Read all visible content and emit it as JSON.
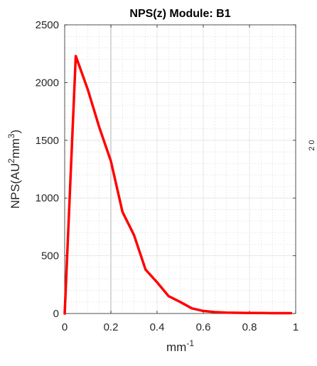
{
  "chart_data": {
    "type": "line",
    "title": "NPS(z) Module: B1",
    "xlabel": "mm",
    "xlabel_sup": "-1",
    "ylabel_prefix": "NPS(AU",
    "ylabel_sup1": "2",
    "ylabel_mid": "mm",
    "ylabel_sup2": "3",
    "ylabel_suffix": ")",
    "xlim": [
      0,
      1
    ],
    "ylim": [
      0,
      2500
    ],
    "xticks": [
      0,
      0.2,
      0.4,
      0.6,
      0.8,
      1
    ],
    "xtick_labels": [
      "0",
      "0.2",
      "0.4",
      "0.6",
      "0.8",
      "1"
    ],
    "yticks": [
      0,
      500,
      1000,
      1500,
      2000,
      2500
    ],
    "ytick_labels": [
      "0",
      "500",
      "1000",
      "1500",
      "2000",
      "2500"
    ],
    "grid": true,
    "minor_grid": true,
    "line_color": "#ff0000",
    "highlight_gridline_x": 0.2,
    "series": [
      {
        "x": [
          0,
          0.048,
          0.1,
          0.15,
          0.2,
          0.25,
          0.3,
          0.35,
          0.4,
          0.45,
          0.5,
          0.55,
          0.6,
          0.65,
          0.7,
          0.75,
          0.8,
          0.85,
          0.9,
          0.95,
          0.98
        ],
        "y": [
          0,
          2230,
          1940,
          1610,
          1320,
          880,
          680,
          380,
          270,
          150,
          100,
          45,
          22,
          12,
          8,
          6,
          5,
          4,
          3,
          3,
          3
        ]
      }
    ]
  },
  "edge_fragment": {
    "text": "2 0"
  }
}
